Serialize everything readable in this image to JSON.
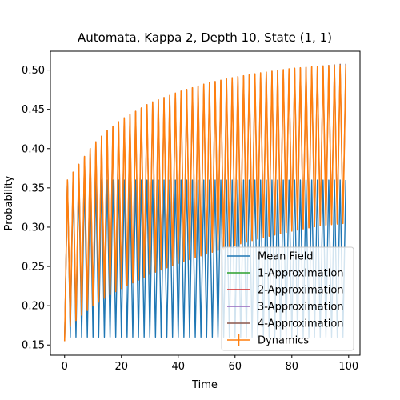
{
  "chart_data": {
    "type": "line",
    "title": "Automata, Kappa 2, Depth 10, State (1, 1)",
    "xlabel": "Time",
    "ylabel": "Probability",
    "xlim": [
      -5,
      104
    ],
    "ylim": [
      0.137,
      0.524
    ],
    "xticks": [
      0,
      20,
      40,
      60,
      80,
      100
    ],
    "yticks": [
      0.15,
      0.2,
      0.25,
      0.3,
      0.35,
      0.4,
      0.45,
      0.5
    ],
    "grid": false,
    "legend_position": "lower-right",
    "oscillation_period": 2,
    "x_range": [
      0,
      99
    ],
    "series": [
      {
        "name": "Mean Field",
        "color": "#1f77b4",
        "style": "line",
        "visible": true,
        "oscillation": {
          "upper_envelope": [
            [
              0,
              0.36
            ],
            [
              99,
              0.36
            ]
          ],
          "lower_envelope": [
            [
              0,
              0.155
            ],
            [
              1,
              0.16
            ],
            [
              99,
              0.16
            ]
          ]
        }
      },
      {
        "name": "1-Approximation",
        "color": "#2ca02c",
        "style": "line",
        "visible": false
      },
      {
        "name": "2-Approximation",
        "color": "#d62728",
        "style": "line",
        "visible": false
      },
      {
        "name": "3-Approximation",
        "color": "#9467bd",
        "style": "line",
        "visible": false
      },
      {
        "name": "4-Approximation",
        "color": "#8c564b",
        "style": "line",
        "visible": true,
        "oscillation": {
          "upper_envelope": [
            [
              0,
              0.155
            ],
            [
              1,
              0.36
            ],
            [
              5,
              0.38
            ],
            [
              10,
              0.405
            ],
            [
              15,
              0.423
            ],
            [
              20,
              0.437
            ],
            [
              30,
              0.458
            ],
            [
              40,
              0.472
            ],
            [
              50,
              0.483
            ],
            [
              60,
              0.491
            ],
            [
              70,
              0.497
            ],
            [
              80,
              0.502
            ],
            [
              90,
              0.505
            ],
            [
              99,
              0.508
            ]
          ],
          "lower_envelope": [
            [
              0,
              0.155
            ],
            [
              1,
              0.17
            ],
            [
              5,
              0.185
            ],
            [
              10,
              0.2
            ],
            [
              15,
              0.212
            ],
            [
              20,
              0.222
            ],
            [
              30,
              0.24
            ],
            [
              40,
              0.254
            ],
            [
              50,
              0.266
            ],
            [
              60,
              0.277
            ],
            [
              70,
              0.287
            ],
            [
              80,
              0.295
            ],
            [
              90,
              0.302
            ],
            [
              99,
              0.307
            ]
          ]
        }
      },
      {
        "name": "Dynamics",
        "color": "#ff7f0e",
        "style": "errorbar",
        "visible": true,
        "oscillation": {
          "upper_envelope": [
            [
              0,
              0.155
            ],
            [
              1,
              0.36
            ],
            [
              5,
              0.38
            ],
            [
              10,
              0.405
            ],
            [
              15,
              0.423
            ],
            [
              20,
              0.437
            ],
            [
              30,
              0.458
            ],
            [
              40,
              0.472
            ],
            [
              50,
              0.483
            ],
            [
              60,
              0.491
            ],
            [
              70,
              0.497
            ],
            [
              80,
              0.502
            ],
            [
              90,
              0.505
            ],
            [
              99,
              0.506
            ]
          ],
          "lower_envelope": [
            [
              0,
              0.155
            ],
            [
              1,
              0.17
            ],
            [
              5,
              0.185
            ],
            [
              10,
              0.2
            ],
            [
              15,
              0.212
            ],
            [
              20,
              0.222
            ],
            [
              30,
              0.24
            ],
            [
              40,
              0.254
            ],
            [
              50,
              0.266
            ],
            [
              60,
              0.277
            ],
            [
              70,
              0.287
            ],
            [
              80,
              0.295
            ],
            [
              90,
              0.302
            ],
            [
              99,
              0.305
            ]
          ]
        }
      }
    ]
  }
}
